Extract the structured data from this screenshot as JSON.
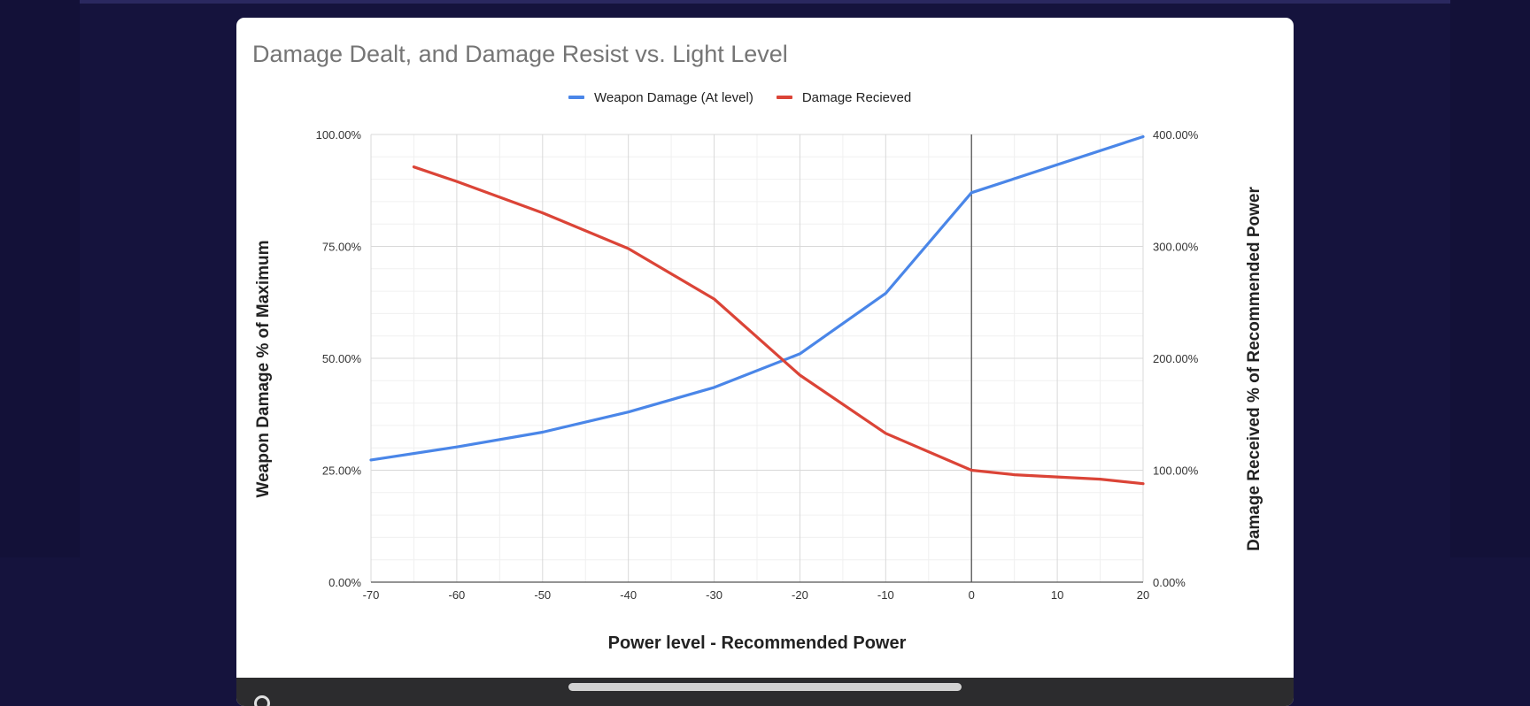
{
  "chart_data": {
    "type": "line",
    "title": "Damage Dealt, and Damage Resist vs. Light Level",
    "xlabel": "Power level - Recommended Power",
    "ylabel_left": "Weapon Damage % of Maximum",
    "ylabel_right": "Damage Received % of Recommended Power",
    "xlim": [
      -70,
      20
    ],
    "x_ticks": [
      -70,
      -60,
      -50,
      -40,
      -30,
      -20,
      -10,
      0,
      10,
      20
    ],
    "x_tick_labels": [
      "-70",
      "-60",
      "-50",
      "-40",
      "-30",
      "-20",
      "-10",
      "0",
      "10",
      "20"
    ],
    "ylim_left": [
      0,
      100
    ],
    "y_ticks_left": [
      0,
      25,
      50,
      75,
      100
    ],
    "y_tick_labels_left": [
      "0.00%",
      "25.00%",
      "50.00%",
      "75.00%",
      "100.00%"
    ],
    "ylim_right": [
      0,
      400
    ],
    "y_ticks_right": [
      0,
      100,
      200,
      300,
      400
    ],
    "y_tick_labels_right": [
      "0.00%",
      "100.00%",
      "200.00%",
      "300.00%",
      "400.00%"
    ],
    "grid": true,
    "reference_line_x": 0,
    "legend_position": "top",
    "series": [
      {
        "name": "Weapon Damage (At level)",
        "axis": "left",
        "color": "#4a86e8",
        "x": [
          -70,
          -60,
          -50,
          -40,
          -30,
          -20,
          -10,
          0,
          20
        ],
        "values": [
          27.3,
          30.2,
          33.5,
          38.0,
          43.5,
          51.0,
          64.5,
          87.0,
          99.5
        ]
      },
      {
        "name": "Damage Recieved",
        "axis": "right",
        "color": "#db4437",
        "x": [
          -65,
          -60,
          -50,
          -40,
          -30,
          -20,
          -10,
          0,
          5,
          10,
          15,
          20
        ],
        "values": [
          371,
          358,
          330,
          298,
          253,
          185,
          133,
          100,
          96,
          94,
          92,
          88
        ]
      }
    ]
  },
  "ui": {
    "bottom_bar_left_text": "",
    "bottom_bar_right_text": ""
  }
}
